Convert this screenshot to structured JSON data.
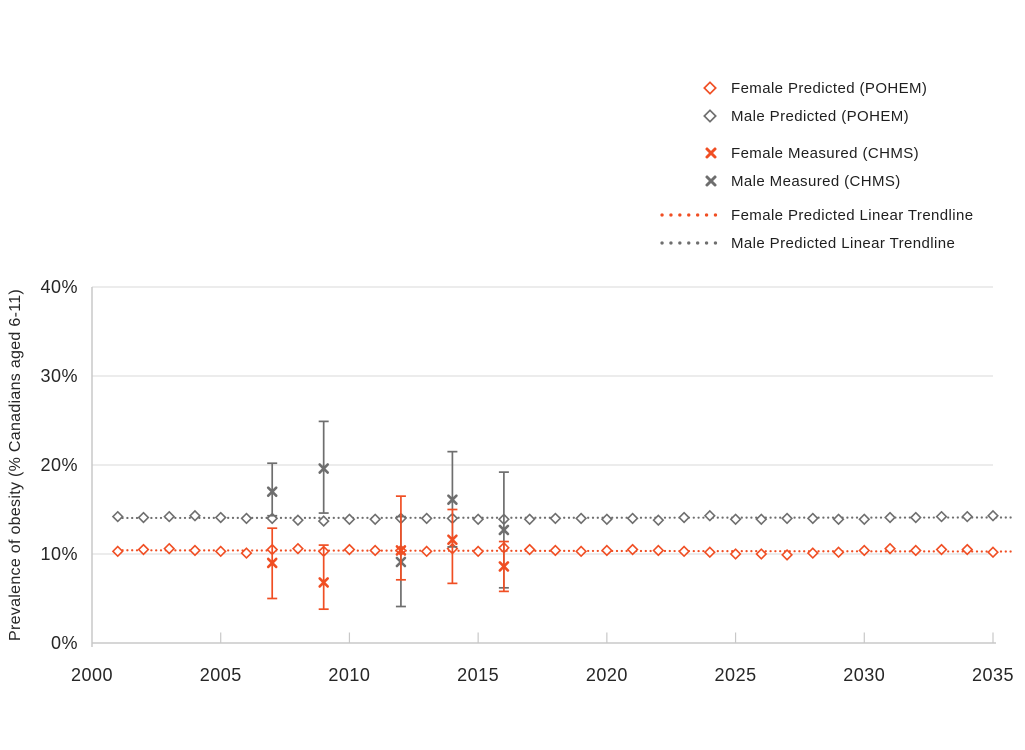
{
  "colors": {
    "female": "#F04E23",
    "male": "#6E6E6E",
    "gridline": "#DADADA",
    "axis_line": "#C8C8C8",
    "text": "#262626"
  },
  "chart_data": {
    "type": "scatter",
    "title": "",
    "xlabel": "",
    "ylabel": "Prevalence of obesity (% Canadians aged 6-11)",
    "xlim": [
      2000,
      2035
    ],
    "ylim": [
      0,
      40
    ],
    "grid": true,
    "legend_position": "top-right",
    "x_tick_values": [
      2000,
      2005,
      2010,
      2015,
      2020,
      2025,
      2030,
      2035
    ],
    "x_tick_labels": [
      "2000",
      "2005",
      "2010",
      "2015",
      "2020",
      "2025",
      "2030",
      "2035"
    ],
    "y_tick_values": [
      0,
      10,
      20,
      30,
      40
    ],
    "y_tick_labels": [
      "0%",
      "10%",
      "20%",
      "30%",
      "40%"
    ],
    "series": [
      {
        "name": "Female Predicted (POHEM)",
        "marker": "open-diamond",
        "color": "#F04E23",
        "x": [
          2001,
          2002,
          2003,
          2004,
          2005,
          2006,
          2007,
          2008,
          2009,
          2010,
          2011,
          2012,
          2013,
          2014,
          2015,
          2016,
          2017,
          2018,
          2019,
          2020,
          2021,
          2022,
          2023,
          2024,
          2025,
          2026,
          2027,
          2028,
          2029,
          2030,
          2031,
          2032,
          2033,
          2034,
          2035
        ],
        "y": [
          10.3,
          10.5,
          10.6,
          10.4,
          10.3,
          10.1,
          10.5,
          10.6,
          10.3,
          10.5,
          10.4,
          10.4,
          10.3,
          10.6,
          10.3,
          10.7,
          10.5,
          10.4,
          10.3,
          10.4,
          10.5,
          10.4,
          10.3,
          10.2,
          10.0,
          10.0,
          9.9,
          10.1,
          10.2,
          10.4,
          10.6,
          10.4,
          10.5,
          10.5,
          10.2
        ]
      },
      {
        "name": "Male Predicted (POHEM)",
        "marker": "open-diamond",
        "color": "#6E6E6E",
        "x": [
          2001,
          2002,
          2003,
          2004,
          2005,
          2006,
          2007,
          2008,
          2009,
          2010,
          2011,
          2012,
          2013,
          2014,
          2015,
          2016,
          2017,
          2018,
          2019,
          2020,
          2021,
          2022,
          2023,
          2024,
          2025,
          2026,
          2027,
          2028,
          2029,
          2030,
          2031,
          2032,
          2033,
          2034,
          2035
        ],
        "y": [
          14.2,
          14.1,
          14.2,
          14.3,
          14.1,
          14.0,
          14.0,
          13.8,
          13.7,
          13.9,
          13.9,
          14.0,
          14.0,
          14.0,
          13.9,
          13.9,
          13.9,
          14.0,
          14.0,
          13.9,
          14.0,
          13.8,
          14.1,
          14.3,
          13.9,
          13.9,
          14.0,
          14.0,
          13.9,
          13.9,
          14.1,
          14.1,
          14.2,
          14.2,
          14.3
        ]
      },
      {
        "name": "Female Measured (CHMS)",
        "marker": "x-errorbar",
        "color": "#F04E23",
        "points": [
          {
            "x": 2007,
            "y": 9.0,
            "ci_low": 5.0,
            "ci_high": 12.9
          },
          {
            "x": 2009,
            "y": 6.8,
            "ci_low": 3.8,
            "ci_high": 11.0
          },
          {
            "x": 2012,
            "y": 10.4,
            "ci_low": 7.1,
            "ci_high": 16.5
          },
          {
            "x": 2014,
            "y": 11.6,
            "ci_low": 6.7,
            "ci_high": 15.0
          },
          {
            "x": 2016,
            "y": 8.6,
            "ci_low": 5.8,
            "ci_high": 11.4
          }
        ]
      },
      {
        "name": "Male Measured (CHMS)",
        "marker": "x-errorbar",
        "color": "#6E6E6E",
        "points": [
          {
            "x": 2007,
            "y": 17.0,
            "ci_low": 14.3,
            "ci_high": 20.2
          },
          {
            "x": 2009,
            "y": 19.6,
            "ci_low": 14.6,
            "ci_high": 24.9
          },
          {
            "x": 2012,
            "y": 9.1,
            "ci_low": 4.1,
            "ci_high": 14.2
          },
          {
            "x": 2014,
            "y": 16.1,
            "ci_low": 10.8,
            "ci_high": 21.5
          },
          {
            "x": 2016,
            "y": 12.7,
            "ci_low": 6.2,
            "ci_high": 19.2
          }
        ]
      },
      {
        "name": "Female Predicted Linear Trendline",
        "marker": "dotted-line",
        "color": "#F04E23",
        "line": {
          "x1": 2001,
          "y1": 10.42,
          "x2": 2035.7,
          "y2": 10.28
        }
      },
      {
        "name": "Male Predicted Linear Trendline",
        "marker": "dotted-line",
        "color": "#6E6E6E",
        "line": {
          "x1": 2001,
          "y1": 14.05,
          "x2": 2035.7,
          "y2": 14.1
        }
      }
    ]
  }
}
